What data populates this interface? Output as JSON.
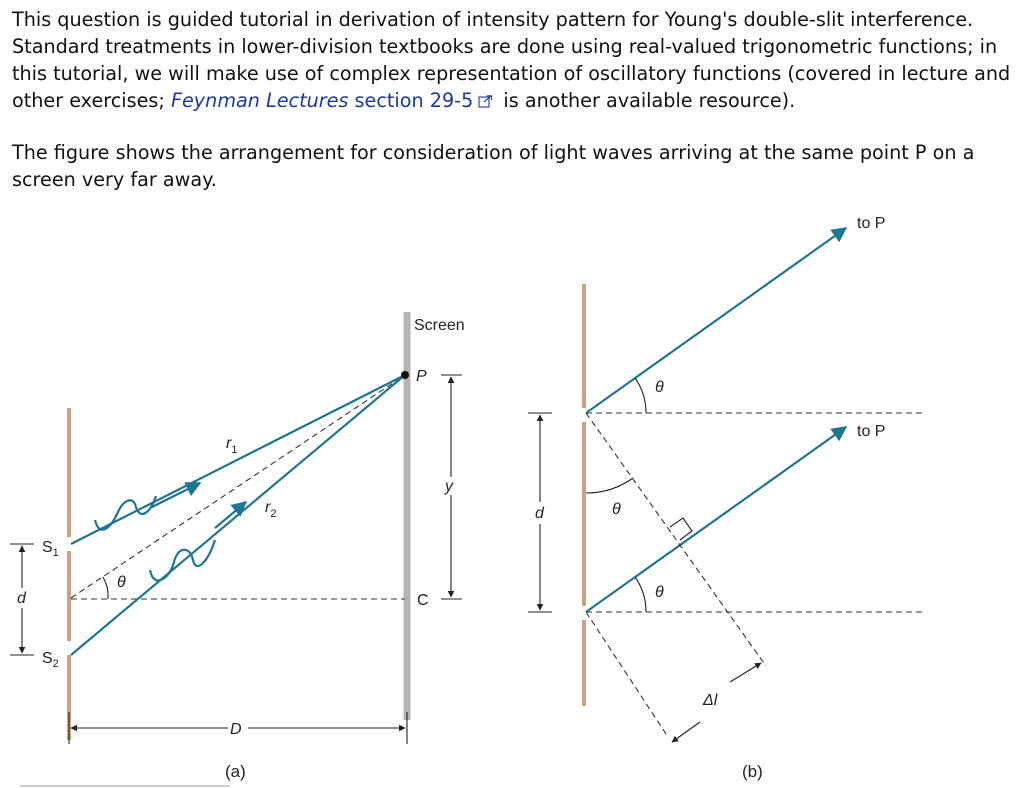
{
  "intro": {
    "text_before": "This question is guided tutorial in derivation of intensity pattern for Young's double-slit interference. Standard treatments in lower-division textbooks are done using real-valued trigonometric functions; in this tutorial, we will make use of complex representation of oscillatory functions (covered in lecture and other exercises; ",
    "link_title": "Feynman Lectures",
    "link_section": " section 29-5",
    "text_after": " is another available resource)."
  },
  "description": "The figure shows the arrangement for consideration of light waves arriving at the same point P on a screen very far away.",
  "colors": {
    "ray": "#1f7594",
    "slit": "#c9a27e",
    "screen": "#b3b3b3",
    "link": "#1a3a9c"
  },
  "icons": {
    "external_link": "external-link-icon"
  },
  "figure": {
    "a": {
      "screen_label": "Screen",
      "point_p": "P",
      "point_c": "C",
      "r1": "r",
      "r1_sub": "1",
      "r2": "r",
      "r2_sub": "2",
      "y": "y",
      "s1": "S",
      "s1_sub": "1",
      "s2": "S",
      "s2_sub": "2",
      "d": "d",
      "theta": "θ",
      "D": "D",
      "caption": "(a)"
    },
    "b": {
      "to_p_top": "to P",
      "to_p_bottom": "to P",
      "theta_top": "θ",
      "theta_mid": "θ",
      "theta_bottom": "θ",
      "d": "d",
      "delta_l": "Δl",
      "caption": "(b)"
    }
  }
}
